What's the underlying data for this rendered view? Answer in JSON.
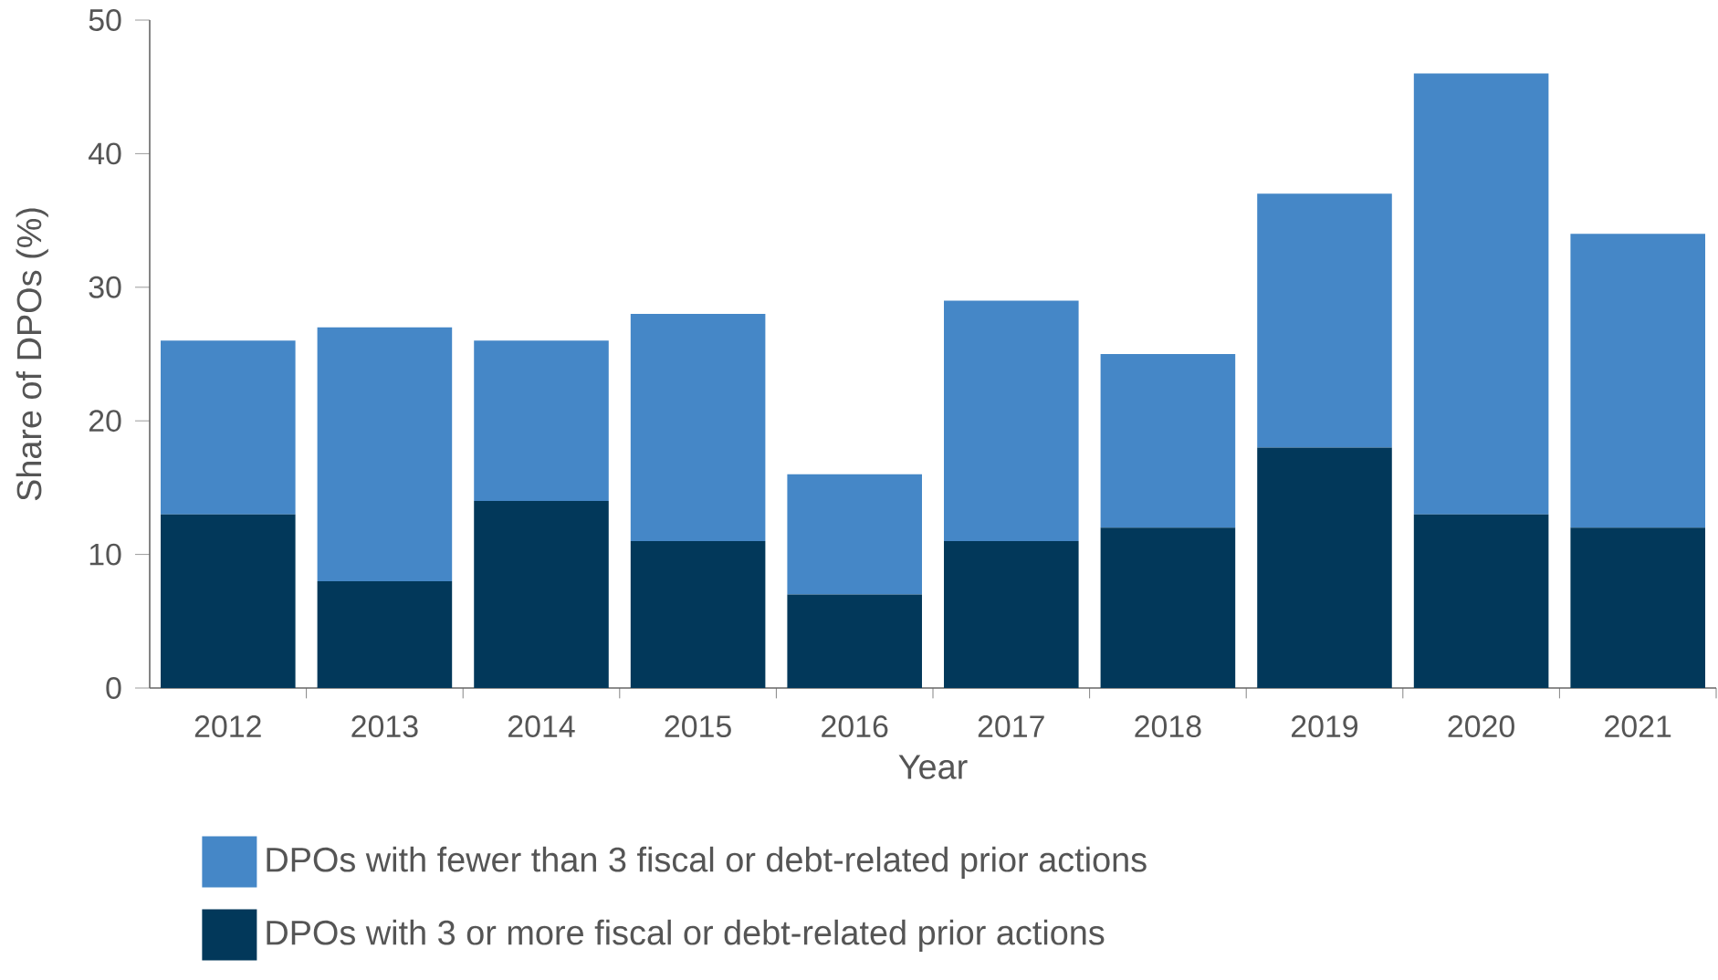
{
  "chart_data": {
    "type": "bar",
    "stacked": true,
    "xlabel": "Year",
    "ylabel": "Share of DPOs (%)",
    "categories": [
      "2012",
      "2013",
      "2014",
      "2015",
      "2016",
      "2017",
      "2018",
      "2019",
      "2020",
      "2021"
    ],
    "series": [
      {
        "name": "DPOs with 3 or more fiscal or debt-related prior actions",
        "color": "#02385a",
        "values": [
          13,
          8,
          14,
          11,
          7,
          11,
          12,
          18,
          13,
          12
        ]
      },
      {
        "name": "DPOs with fewer than 3 fiscal or debt-related prior actions",
        "color": "#4587c7",
        "values": [
          13,
          19,
          12,
          17,
          9,
          18,
          13,
          19,
          33,
          22
        ]
      }
    ],
    "ylim": [
      0,
      50
    ],
    "yticks": [
      0,
      10,
      20,
      30,
      40,
      50
    ],
    "legend": "bottom left",
    "grid": false
  }
}
